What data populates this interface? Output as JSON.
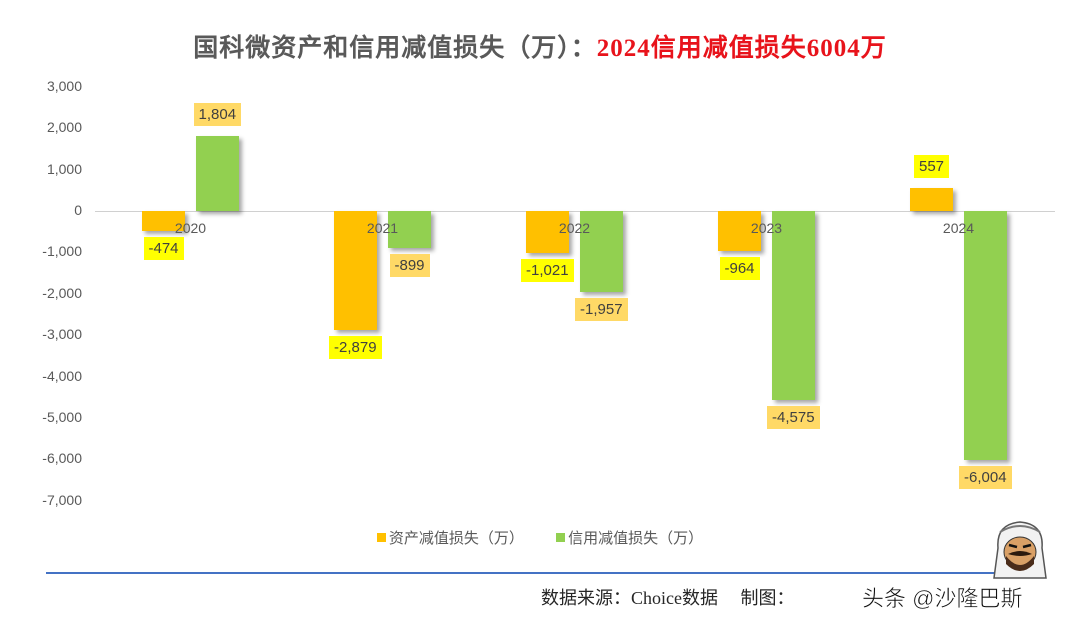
{
  "title": {
    "main": "国科微资产和信用减值损失（万）：",
    "highlight": "2024信用减值损失6004万",
    "highlight_color": "#e8131b"
  },
  "y_axis": {
    "ticks": [
      "3,000",
      "2,000",
      "1,000",
      "0",
      "-1,000",
      "-2,000",
      "-3,000",
      "-4,000",
      "-5,000",
      "-6,000",
      "-7,000"
    ]
  },
  "x_axis": {
    "categories": [
      "2020",
      "2021",
      "2022",
      "2023",
      "2024"
    ]
  },
  "data_labels": {
    "asset": [
      "-474",
      "-2,879",
      "-1,021",
      "-964",
      "557"
    ],
    "credit": [
      "1,804",
      "-899",
      "-1,957",
      "-4,575",
      "-6,004"
    ]
  },
  "legend": {
    "asset": "资产减值损失（万）",
    "credit": "信用减值损失（万）"
  },
  "colors": {
    "asset": "#ffc000",
    "credit": "#92d050",
    "asset_label_bg": "#ffff00",
    "credit_label_bg": "#ffd966",
    "divider": "#4472c4"
  },
  "footer": {
    "source": "数据来源：Choice数据　 制图：",
    "watermark": "头条 @沙隆巴斯"
  },
  "chart_data": {
    "type": "bar",
    "title": "国科微资产和信用减值损失（万）：2024信用减值损失6004万",
    "categories": [
      "2020",
      "2021",
      "2022",
      "2023",
      "2024"
    ],
    "series": [
      {
        "name": "资产减值损失（万）",
        "values": [
          -474,
          -2879,
          -1021,
          -964,
          557
        ],
        "color": "#ffc000"
      },
      {
        "name": "信用减值损失（万）",
        "values": [
          1804,
          -899,
          -1957,
          -4575,
          -6004
        ],
        "color": "#92d050"
      }
    ],
    "xlabel": "",
    "ylabel": "",
    "ylim": [
      -7000,
      3000
    ],
    "yticks": [
      3000,
      2000,
      1000,
      0,
      -1000,
      -2000,
      -3000,
      -4000,
      -5000,
      -6000,
      -7000
    ],
    "grid": false,
    "legend_position": "bottom",
    "data_labels": true
  }
}
